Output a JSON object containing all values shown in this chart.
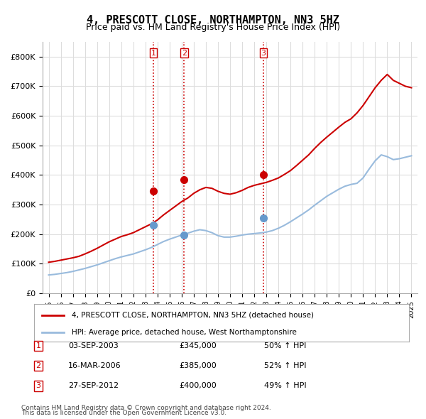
{
  "title": "4, PRESCOTT CLOSE, NORTHAMPTON, NN3 5HZ",
  "subtitle": "Price paid vs. HM Land Registry's House Price Index (HPI)",
  "title_fontsize": 11,
  "subtitle_fontsize": 9,
  "red_label": "4, PRESCOTT CLOSE, NORTHAMPTON, NN3 5HZ (detached house)",
  "blue_label": "HPI: Average price, detached house, West Northamptonshire",
  "footer1": "Contains HM Land Registry data © Crown copyright and database right 2024.",
  "footer2": "This data is licensed under the Open Government Licence v3.0.",
  "transactions": [
    {
      "num": "1",
      "date": "03-SEP-2003",
      "price": "£345,000",
      "pct": "50% ↑ HPI",
      "x": 2003.67
    },
    {
      "num": "2",
      "date": "16-MAR-2006",
      "price": "£385,000",
      "pct": "52% ↑ HPI",
      "x": 2006.21
    },
    {
      "num": "3",
      "date": "27-SEP-2012",
      "price": "£400,000",
      "pct": "49% ↑ HPI",
      "x": 2012.75
    }
  ],
  "vline_color": "#cc0000",
  "vline_style": ":",
  "marker_color_red": "#cc0000",
  "marker_color_blue": "#6699cc",
  "ylim": [
    0,
    850000
  ],
  "xlim_left": 1994.5,
  "xlim_right": 2025.5,
  "yticks": [
    0,
    100000,
    200000,
    300000,
    400000,
    500000,
    600000,
    700000,
    800000
  ],
  "ytick_labels": [
    "£0",
    "£100K",
    "£200K",
    "£300K",
    "£400K",
    "£500K",
    "£600K",
    "£700K",
    "£800K"
  ],
  "xticks": [
    1995,
    1996,
    1997,
    1998,
    1999,
    2000,
    2001,
    2002,
    2003,
    2004,
    2005,
    2006,
    2007,
    2008,
    2009,
    2010,
    2011,
    2012,
    2013,
    2014,
    2015,
    2016,
    2017,
    2018,
    2019,
    2020,
    2021,
    2022,
    2023,
    2024,
    2025
  ],
  "grid_color": "#dddddd",
  "bg_color": "#ffffff",
  "red_line_color": "#cc0000",
  "blue_line_color": "#99bbdd",
  "red_x": [
    1995.0,
    1995.5,
    1996.0,
    1996.5,
    1997.0,
    1997.5,
    1998.0,
    1998.5,
    1999.0,
    1999.5,
    2000.0,
    2000.5,
    2001.0,
    2001.5,
    2002.0,
    2002.5,
    2003.0,
    2003.5,
    2004.0,
    2004.5,
    2005.0,
    2005.5,
    2006.0,
    2006.5,
    2007.0,
    2007.5,
    2008.0,
    2008.5,
    2009.0,
    2009.5,
    2010.0,
    2010.5,
    2011.0,
    2011.5,
    2012.0,
    2012.5,
    2013.0,
    2013.5,
    2014.0,
    2014.5,
    2015.0,
    2015.5,
    2016.0,
    2016.5,
    2017.0,
    2017.5,
    2018.0,
    2018.5,
    2019.0,
    2019.5,
    2020.0,
    2020.5,
    2021.0,
    2021.5,
    2022.0,
    2022.5,
    2023.0,
    2023.5,
    2024.0,
    2024.5,
    2025.0
  ],
  "red_y": [
    105000,
    108000,
    112000,
    116000,
    120000,
    125000,
    133000,
    142000,
    152000,
    163000,
    174000,
    183000,
    192000,
    198000,
    205000,
    215000,
    225000,
    235000,
    248000,
    265000,
    280000,
    295000,
    310000,
    322000,
    338000,
    350000,
    358000,
    355000,
    345000,
    338000,
    335000,
    340000,
    348000,
    358000,
    365000,
    370000,
    375000,
    382000,
    390000,
    402000,
    415000,
    432000,
    450000,
    468000,
    490000,
    510000,
    528000,
    545000,
    562000,
    578000,
    590000,
    610000,
    635000,
    665000,
    695000,
    720000,
    740000,
    720000,
    710000,
    700000,
    695000
  ],
  "blue_x": [
    1995.0,
    1995.5,
    1996.0,
    1996.5,
    1997.0,
    1997.5,
    1998.0,
    1998.5,
    1999.0,
    1999.5,
    2000.0,
    2000.5,
    2001.0,
    2001.5,
    2002.0,
    2002.5,
    2003.0,
    2003.5,
    2004.0,
    2004.5,
    2005.0,
    2005.5,
    2006.0,
    2006.5,
    2007.0,
    2007.5,
    2008.0,
    2008.5,
    2009.0,
    2009.5,
    2010.0,
    2010.5,
    2011.0,
    2011.5,
    2012.0,
    2012.5,
    2013.0,
    2013.5,
    2014.0,
    2014.5,
    2015.0,
    2015.5,
    2016.0,
    2016.5,
    2017.0,
    2017.5,
    2018.0,
    2018.5,
    2019.0,
    2019.5,
    2020.0,
    2020.5,
    2021.0,
    2021.5,
    2022.0,
    2022.5,
    2023.0,
    2023.5,
    2024.0,
    2024.5,
    2025.0
  ],
  "blue_y": [
    62000,
    64000,
    67000,
    70000,
    74000,
    79000,
    84000,
    90000,
    96000,
    103000,
    110000,
    117000,
    123000,
    128000,
    133000,
    140000,
    147000,
    155000,
    165000,
    175000,
    183000,
    190000,
    197000,
    203000,
    210000,
    215000,
    212000,
    205000,
    195000,
    190000,
    190000,
    193000,
    197000,
    200000,
    202000,
    204000,
    207000,
    212000,
    220000,
    230000,
    242000,
    255000,
    268000,
    282000,
    298000,
    313000,
    328000,
    340000,
    352000,
    362000,
    368000,
    372000,
    390000,
    420000,
    448000,
    468000,
    462000,
    452000,
    455000,
    460000,
    465000
  ],
  "marker1_red_y": 345000,
  "marker2_red_y": 385000,
  "marker3_red_y": 400000,
  "marker1_blue_y": 230000,
  "marker2_blue_y": 197000,
  "marker3_blue_y": 255000
}
